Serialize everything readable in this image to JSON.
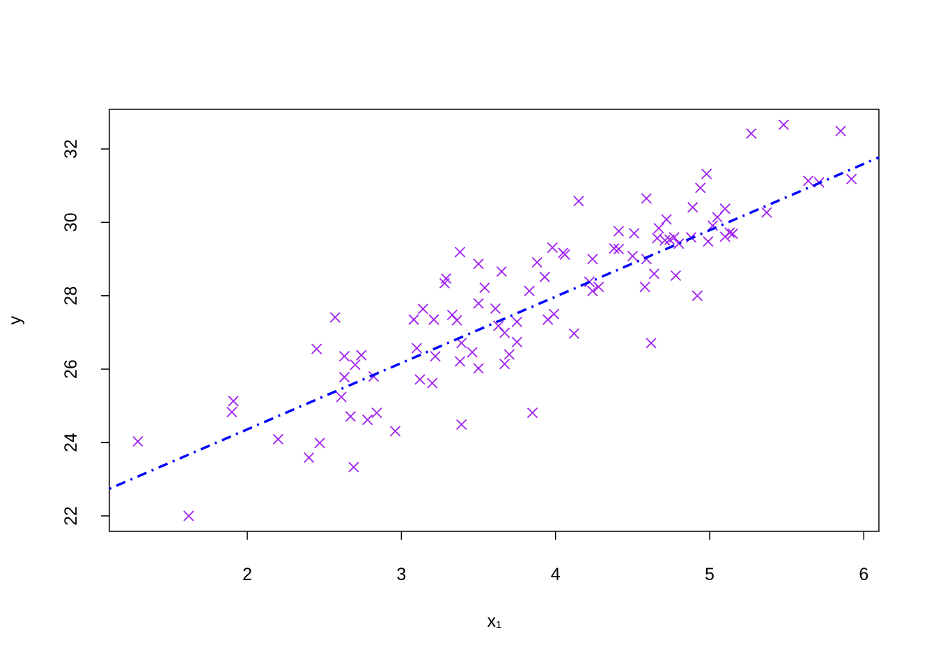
{
  "chart_data": {
    "type": "scatter",
    "x_label": "x₁",
    "y_label": "y",
    "xlim": [
      1.105,
      6.098
    ],
    "ylim": [
      21.58,
      33.08
    ],
    "xticks": [
      2,
      3,
      4,
      5,
      6
    ],
    "yticks": [
      22,
      24,
      26,
      28,
      30,
      32
    ],
    "series": [
      {
        "color": "#a020f0",
        "x": [
          1.29,
          1.62,
          1.91,
          1.9,
          2.2,
          2.4,
          2.47,
          2.45,
          2.57,
          2.61,
          2.63,
          2.63,
          2.67,
          2.69,
          2.7,
          2.74,
          2.78,
          2.82,
          2.84,
          2.96,
          3.08,
          3.1,
          3.12,
          3.14,
          3.2,
          3.21,
          3.22,
          3.29,
          3.28,
          3.33,
          3.36,
          3.38,
          3.38,
          3.39,
          3.39,
          3.46,
          3.5,
          3.5,
          3.5,
          3.54,
          3.61,
          3.63,
          3.65,
          3.67,
          3.67,
          3.7,
          3.75,
          3.75,
          3.83,
          3.85,
          3.88,
          3.93,
          3.95,
          3.98,
          3.99,
          4.05,
          4.06,
          4.12,
          4.15,
          4.22,
          4.24,
          4.24,
          4.28,
          4.38,
          4.41,
          4.41,
          4.5,
          4.51,
          4.58,
          4.59,
          4.59,
          4.62,
          4.64,
          4.66,
          4.67,
          4.71,
          4.72,
          4.74,
          4.78,
          4.77,
          4.8,
          4.88,
          4.89,
          4.92,
          4.94,
          4.98,
          4.99,
          5.02,
          5.05,
          5.1,
          5.1,
          5.13,
          5.15,
          5.27,
          5.37,
          5.48,
          5.64,
          5.71,
          5.85,
          5.92
        ],
        "values": [
          24.03,
          22.0,
          25.13,
          24.83,
          24.09,
          23.59,
          23.99,
          26.55,
          27.41,
          25.24,
          25.78,
          26.35,
          24.71,
          23.33,
          26.12,
          26.38,
          24.62,
          25.8,
          24.81,
          24.31,
          27.35,
          26.57,
          25.72,
          27.64,
          25.62,
          27.35,
          26.35,
          28.47,
          28.34,
          27.48,
          27.33,
          29.19,
          26.21,
          26.71,
          24.49,
          26.46,
          26.02,
          28.87,
          27.79,
          28.22,
          27.65,
          27.18,
          28.66,
          26.99,
          26.14,
          26.4,
          27.29,
          26.74,
          28.13,
          24.81,
          28.91,
          28.51,
          27.35,
          29.31,
          27.5,
          29.17,
          29.12,
          26.97,
          30.58,
          28.38,
          28.13,
          29.0,
          28.24,
          29.29,
          29.76,
          29.27,
          29.08,
          29.7,
          28.24,
          29.0,
          30.65,
          26.71,
          28.6,
          29.57,
          29.84,
          29.51,
          30.08,
          29.53,
          28.55,
          29.59,
          29.42,
          29.59,
          30.41,
          28.0,
          30.94,
          31.32,
          29.48,
          29.91,
          30.14,
          30.37,
          29.61,
          29.72,
          29.69,
          32.42,
          30.27,
          32.66,
          31.13,
          31.09,
          32.49,
          31.18
        ]
      }
    ],
    "fit": {
      "color": "#0000ff",
      "x": [
        1.105,
        6.098
      ],
      "values": [
        22.74,
        31.77
      ]
    }
  }
}
